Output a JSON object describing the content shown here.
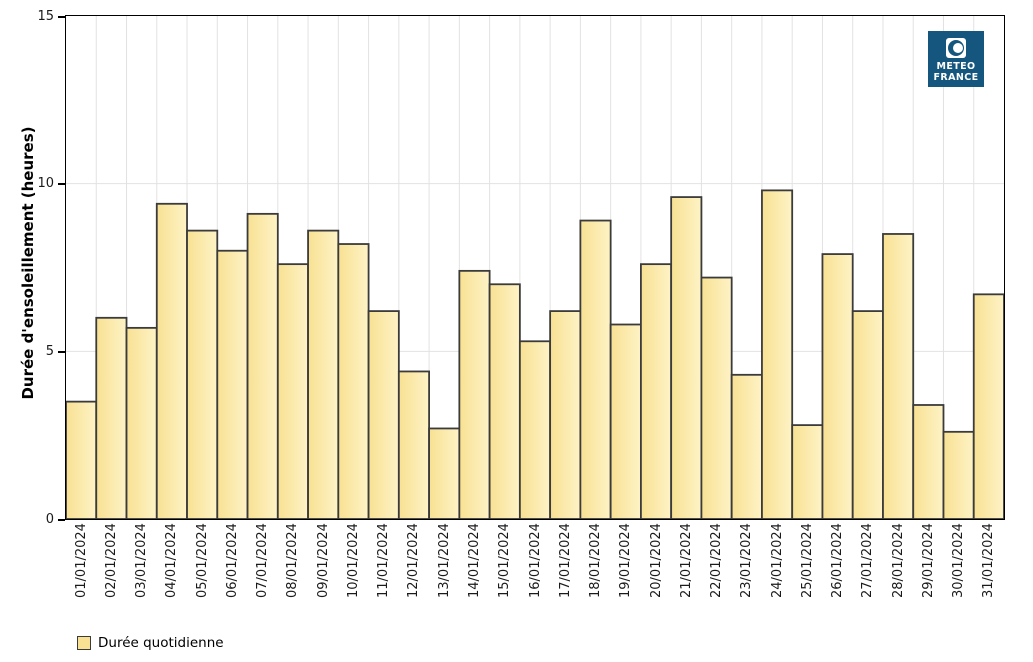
{
  "chart_data": {
    "type": "bar",
    "title": "",
    "ylabel": "Durée d'ensoleillement (heures)",
    "xlabel": "",
    "ylim": [
      0,
      15
    ],
    "yticks": [
      0,
      5,
      10,
      15
    ],
    "grid": true,
    "legend_position": "bottom-left",
    "categories": [
      "01/01/2024",
      "02/01/2024",
      "03/01/2024",
      "04/01/2024",
      "05/01/2024",
      "06/01/2024",
      "07/01/2024",
      "08/01/2024",
      "09/01/2024",
      "10/01/2024",
      "11/01/2024",
      "12/01/2024",
      "13/01/2024",
      "14/01/2024",
      "15/01/2024",
      "16/01/2024",
      "17/01/2024",
      "18/01/2024",
      "19/01/2024",
      "20/01/2024",
      "21/01/2024",
      "22/01/2024",
      "23/01/2024",
      "24/01/2024",
      "25/01/2024",
      "26/01/2024",
      "27/01/2024",
      "28/01/2024",
      "29/01/2024",
      "30/01/2024",
      "31/01/2024"
    ],
    "series": [
      {
        "name": "Durée quotidienne",
        "values": [
          3.5,
          6.0,
          5.7,
          9.4,
          8.6,
          8.0,
          9.1,
          7.6,
          8.6,
          8.2,
          6.2,
          4.4,
          2.7,
          7.4,
          7.0,
          5.3,
          6.2,
          8.9,
          5.8,
          7.6,
          9.6,
          7.2,
          4.3,
          9.8,
          2.8,
          7.9,
          6.2,
          8.5,
          3.4,
          2.6,
          6.7
        ]
      }
    ]
  },
  "logo": {
    "line1": "METEO",
    "line2": "FRANCE"
  },
  "colors": {
    "bar_fill_left": "#F8E193",
    "bar_fill_right": "#FEF3C6",
    "bar_border": "#3B3B3B",
    "grid": "#E2E2E2",
    "axis": "#000000",
    "logo_bg": "#15567E",
    "logo_fg": "#FFFFFF"
  }
}
